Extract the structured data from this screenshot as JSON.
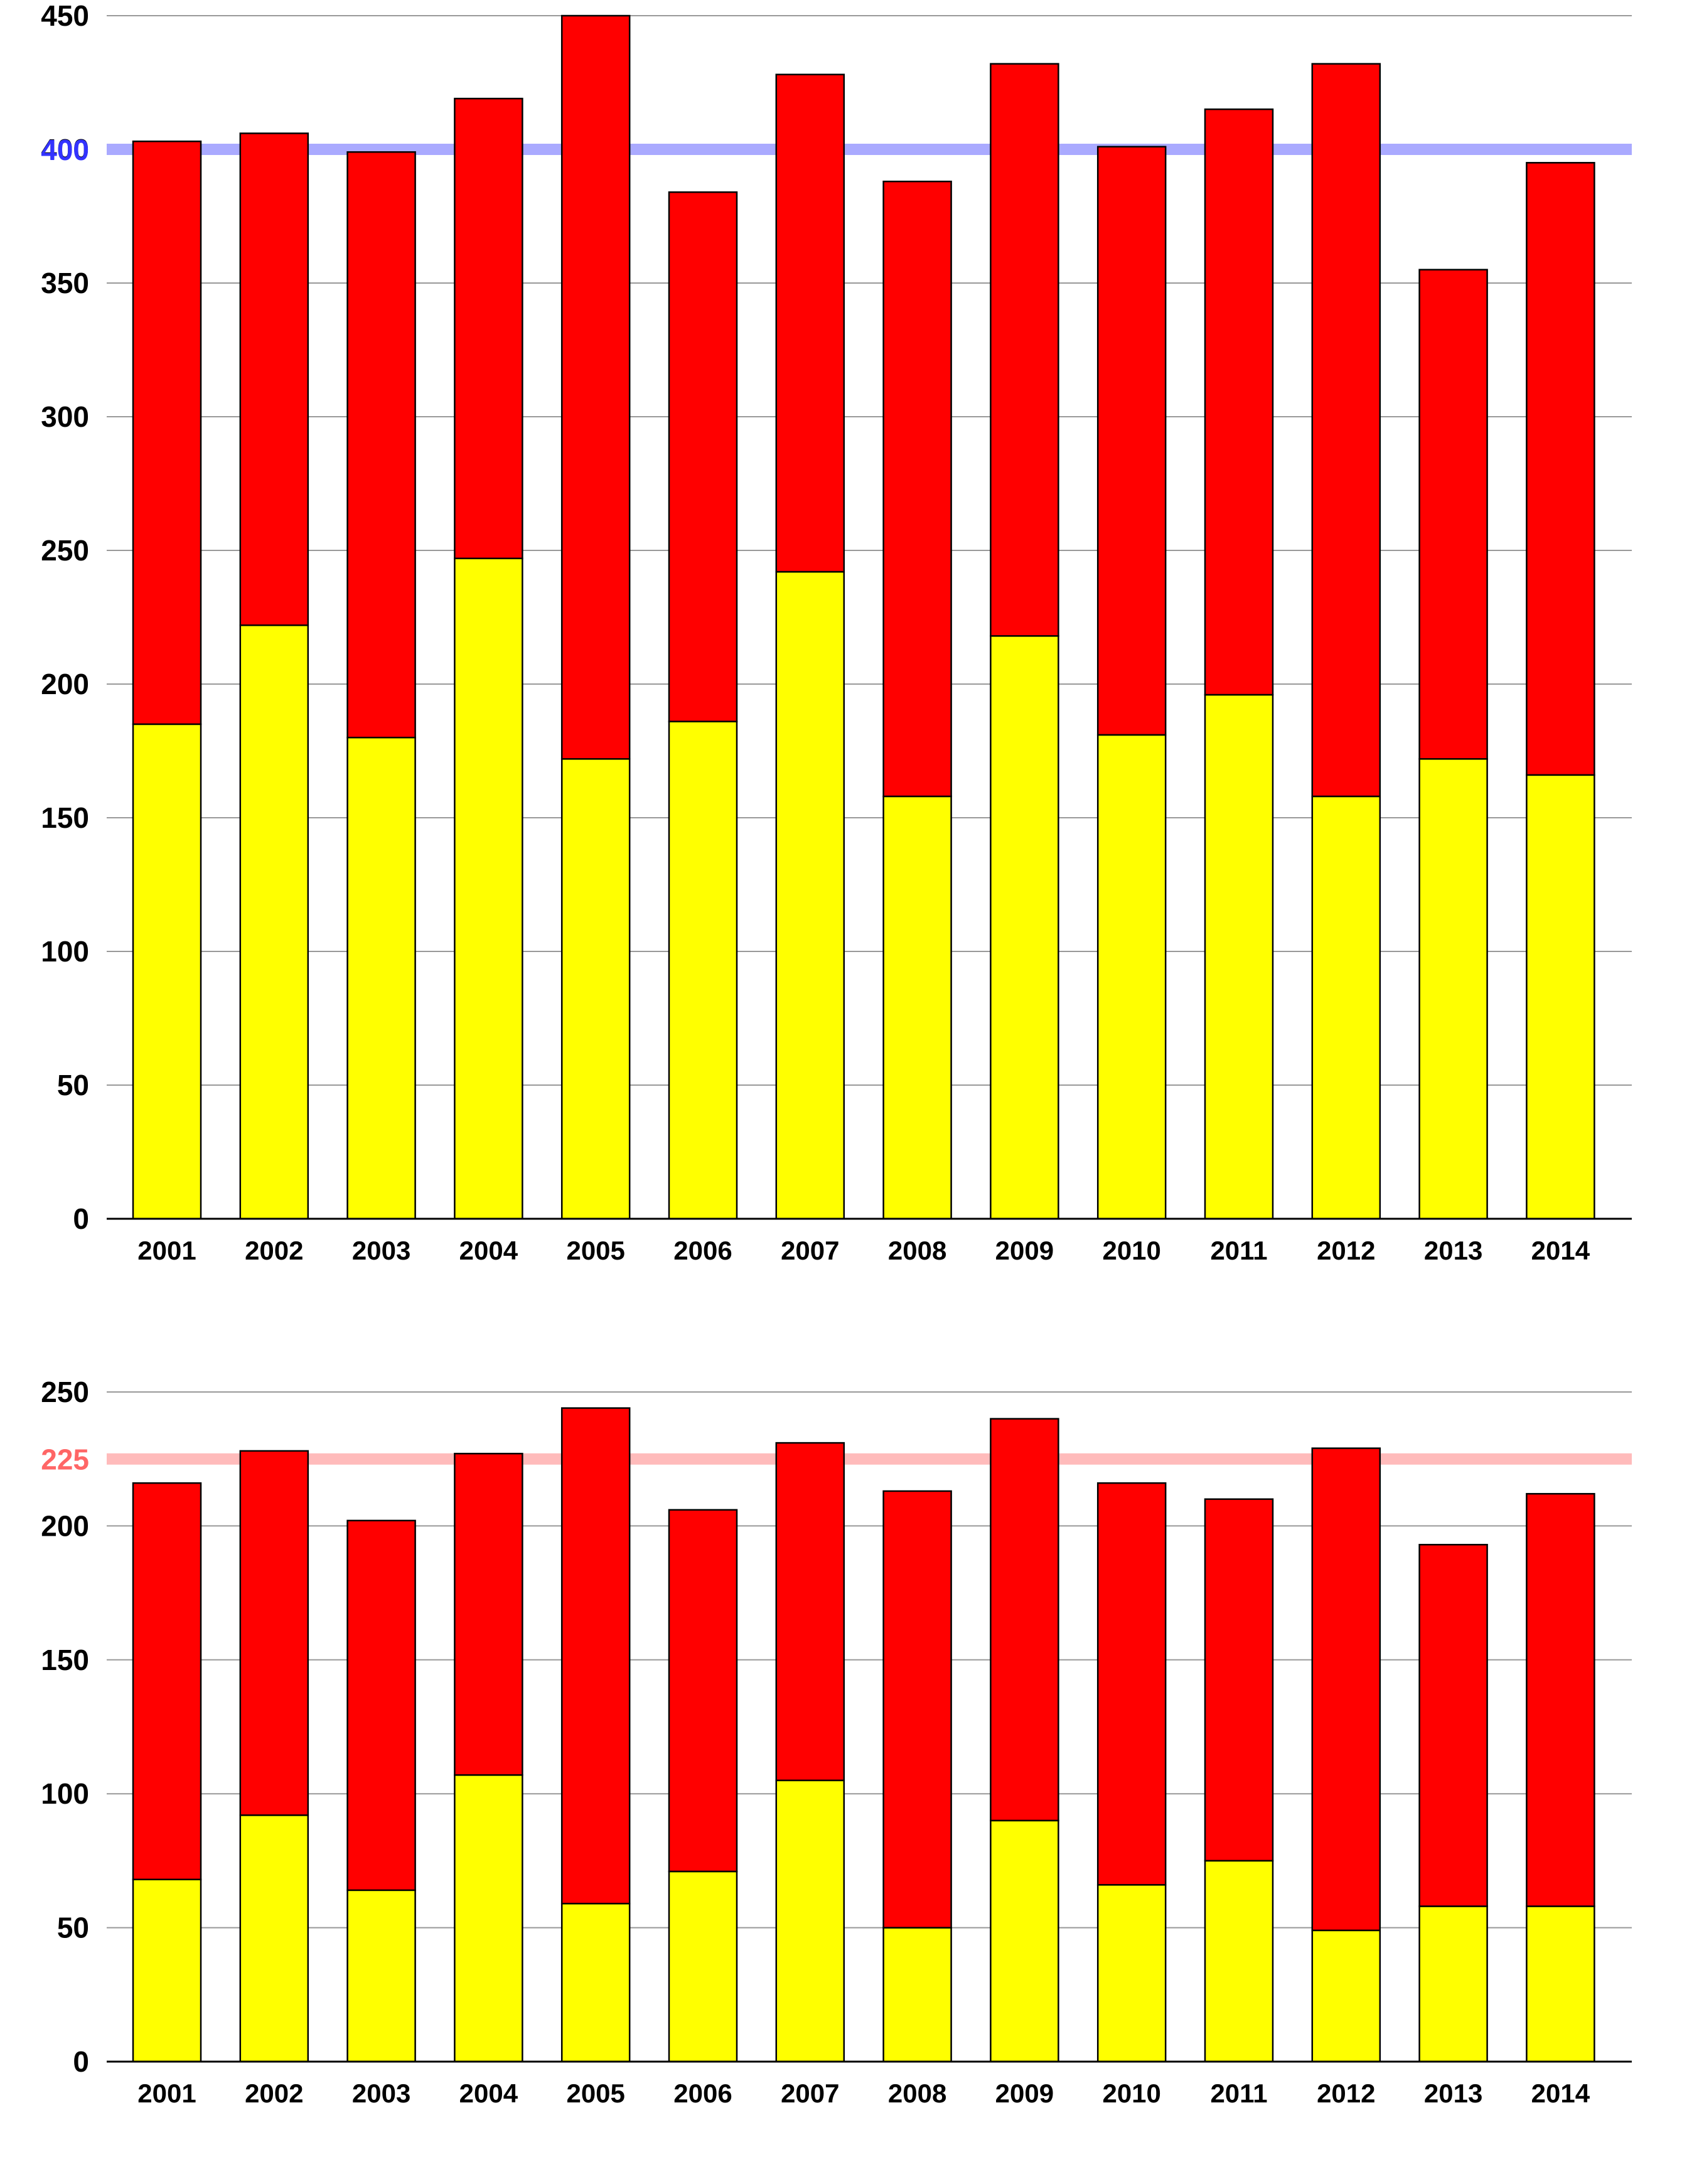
{
  "chart_data": [
    {
      "type": "bar",
      "stacked": true,
      "title": "",
      "xlabel": "",
      "ylabel": "",
      "ylim": [
        0,
        450
      ],
      "yticks": [
        0,
        50,
        100,
        150,
        200,
        250,
        300,
        350,
        400,
        450
      ],
      "grid": true,
      "categories": [
        "2001",
        "2002",
        "2003",
        "2004",
        "2005",
        "2006",
        "2007",
        "2008",
        "2009",
        "2010",
        "2011",
        "2012",
        "2013",
        "2014"
      ],
      "series": [
        {
          "color": "#ffff00",
          "values": [
            185,
            222,
            180,
            247,
            172,
            186,
            242,
            158,
            218,
            181,
            196,
            158,
            172,
            166
          ]
        },
        {
          "color": "#ff0000",
          "values": [
            218,
            184,
            219,
            172,
            278,
            198,
            186,
            230,
            214,
            220,
            219,
            274,
            183,
            229
          ]
        }
      ],
      "reference_line": {
        "value": 400,
        "label": "400",
        "color": "#aaaaff",
        "label_color": "#3333ff"
      }
    },
    {
      "type": "bar",
      "stacked": true,
      "title": "",
      "xlabel": "",
      "ylabel": "",
      "ylim": [
        0,
        250
      ],
      "yticks": [
        0,
        50,
        100,
        150,
        200,
        250
      ],
      "grid": true,
      "categories": [
        "2001",
        "2002",
        "2003",
        "2004",
        "2005",
        "2006",
        "2007",
        "2008",
        "2009",
        "2010",
        "2011",
        "2012",
        "2013",
        "2014"
      ],
      "series": [
        {
          "color": "#ffff00",
          "values": [
            68,
            92,
            64,
            107,
            59,
            71,
            105,
            50,
            90,
            66,
            75,
            49,
            58,
            58
          ]
        },
        {
          "color": "#ff0000",
          "values": [
            148,
            136,
            138,
            120,
            185,
            135,
            126,
            163,
            150,
            150,
            135,
            180,
            135,
            154
          ]
        }
      ],
      "reference_line": {
        "value": 225,
        "label": "225",
        "color": "#ffbbbb",
        "label_color": "#ff6666"
      }
    }
  ]
}
